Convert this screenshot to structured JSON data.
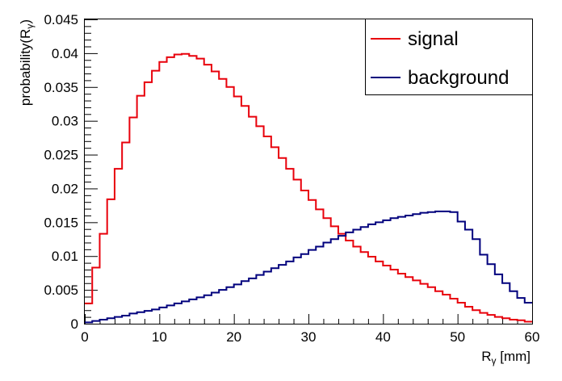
{
  "chart_data": {
    "type": "line",
    "style": "step-histogram",
    "title": "",
    "xlabel": "R",
    "xlabel_sub": "γ",
    "xlabel_suffix": " [mm]",
    "ylabel": "probability(R",
    "ylabel_sub": "γ",
    "ylabel_suffix": ")",
    "xlim": [
      0,
      60
    ],
    "ylim": [
      0,
      0.045
    ],
    "x_ticks": [
      0,
      10,
      20,
      30,
      40,
      50,
      60
    ],
    "x_tick_labels": [
      "0",
      "10",
      "20",
      "30",
      "40",
      "50",
      "60"
    ],
    "y_ticks": [
      0,
      0.005,
      0.01,
      0.015,
      0.02,
      0.025,
      0.03,
      0.035,
      0.04,
      0.045
    ],
    "y_tick_labels": [
      "0",
      "0.005",
      "0.01",
      "0.015",
      "0.02",
      "0.025",
      "0.03",
      "0.035",
      "0.04",
      "0.045"
    ],
    "grid": false,
    "legend_position": "top-right",
    "bin_edges_start": 0,
    "bin_width": 1,
    "series": [
      {
        "name": "signal",
        "color": "#e8000b",
        "values": [
          0.003,
          0.0083,
          0.0133,
          0.0184,
          0.0229,
          0.0268,
          0.0305,
          0.0337,
          0.0357,
          0.0374,
          0.0387,
          0.0394,
          0.0398,
          0.0399,
          0.0396,
          0.0392,
          0.0383,
          0.0373,
          0.0362,
          0.035,
          0.0336,
          0.0322,
          0.0306,
          0.0292,
          0.0277,
          0.0261,
          0.0245,
          0.0229,
          0.0213,
          0.0197,
          0.0183,
          0.0169,
          0.0156,
          0.0144,
          0.0133,
          0.0123,
          0.0114,
          0.0106,
          0.0099,
          0.0092,
          0.0086,
          0.008,
          0.0074,
          0.0069,
          0.0064,
          0.0059,
          0.0054,
          0.0048,
          0.0043,
          0.0037,
          0.0031,
          0.0025,
          0.002,
          0.0016,
          0.0013,
          0.001,
          0.0008,
          0.0006,
          0.0005,
          0.0003
        ]
      },
      {
        "name": "background",
        "color": "#00007d",
        "values": [
          0.0002,
          0.0004,
          0.0006,
          0.0008,
          0.001,
          0.0012,
          0.0015,
          0.0017,
          0.0019,
          0.0021,
          0.0024,
          0.0027,
          0.003,
          0.0033,
          0.0036,
          0.0039,
          0.0042,
          0.0046,
          0.005,
          0.0054,
          0.0058,
          0.0063,
          0.0067,
          0.0072,
          0.0077,
          0.0082,
          0.0087,
          0.0092,
          0.0098,
          0.0103,
          0.0109,
          0.0114,
          0.012,
          0.0125,
          0.013,
          0.0135,
          0.0139,
          0.0143,
          0.0147,
          0.015,
          0.0153,
          0.0156,
          0.0158,
          0.016,
          0.0162,
          0.0164,
          0.0165,
          0.0166,
          0.0166,
          0.0165,
          0.0151,
          0.0139,
          0.0125,
          0.0102,
          0.0088,
          0.0073,
          0.006,
          0.0048,
          0.0038,
          0.0031
        ]
      }
    ]
  }
}
